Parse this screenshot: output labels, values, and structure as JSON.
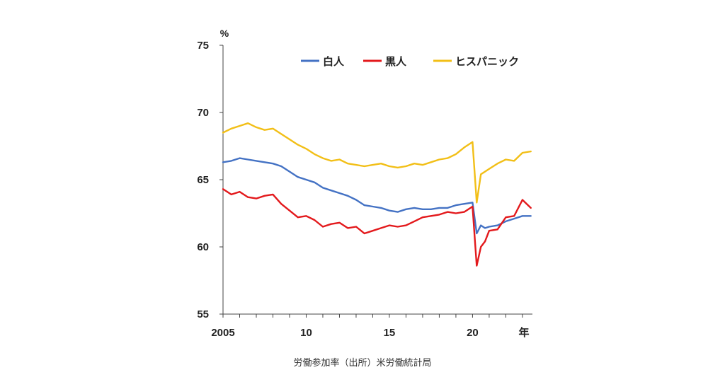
{
  "caption": "労働参加率（出所）米労働統計局",
  "chart_data": {
    "type": "line",
    "title": "",
    "ylabel": "%",
    "xlabel": "年",
    "ylim": [
      55,
      75
    ],
    "xlim": [
      2005,
      2023.6
    ],
    "yticks": [
      55,
      60,
      65,
      70,
      75
    ],
    "ytick_labels": [
      "55",
      "60",
      "65",
      "70",
      "75"
    ],
    "xticks": [
      2005,
      2010,
      2015,
      2020
    ],
    "xtick_labels": [
      "2005",
      "10",
      "15",
      "20"
    ],
    "grid": false,
    "legend_position": "top-right",
    "series": [
      {
        "name": "白人",
        "color": "#4472C4",
        "x": [
          2005.0,
          2005.5,
          2006.0,
          2006.5,
          2007.0,
          2007.5,
          2008.0,
          2008.5,
          2009.0,
          2009.5,
          2010.0,
          2010.5,
          2011.0,
          2011.5,
          2012.0,
          2012.5,
          2013.0,
          2013.5,
          2014.0,
          2014.5,
          2015.0,
          2015.5,
          2016.0,
          2016.5,
          2017.0,
          2017.5,
          2018.0,
          2018.5,
          2019.0,
          2019.5,
          2020.0,
          2020.25,
          2020.5,
          2020.75,
          2021.0,
          2021.5,
          2022.0,
          2022.5,
          2023.0,
          2023.5
        ],
        "y": [
          66.3,
          66.4,
          66.6,
          66.5,
          66.4,
          66.3,
          66.2,
          66.0,
          65.6,
          65.2,
          65.0,
          64.8,
          64.4,
          64.2,
          64.0,
          63.8,
          63.5,
          63.1,
          63.0,
          62.9,
          62.7,
          62.6,
          62.8,
          62.9,
          62.8,
          62.8,
          62.9,
          62.9,
          63.1,
          63.2,
          63.3,
          61.0,
          61.6,
          61.4,
          61.5,
          61.6,
          61.9,
          62.1,
          62.3,
          62.3
        ]
      },
      {
        "name": "黒人",
        "color": "#E3191C",
        "x": [
          2005.0,
          2005.5,
          2006.0,
          2006.5,
          2007.0,
          2007.5,
          2008.0,
          2008.5,
          2009.0,
          2009.5,
          2010.0,
          2010.5,
          2011.0,
          2011.5,
          2012.0,
          2012.5,
          2013.0,
          2013.5,
          2014.0,
          2014.5,
          2015.0,
          2015.5,
          2016.0,
          2016.5,
          2017.0,
          2017.5,
          2018.0,
          2018.5,
          2019.0,
          2019.5,
          2020.0,
          2020.25,
          2020.5,
          2020.75,
          2021.0,
          2021.5,
          2022.0,
          2022.5,
          2023.0,
          2023.5
        ],
        "y": [
          64.3,
          63.9,
          64.1,
          63.7,
          63.6,
          63.8,
          63.9,
          63.2,
          62.7,
          62.2,
          62.3,
          62.0,
          61.5,
          61.7,
          61.8,
          61.4,
          61.5,
          61.0,
          61.2,
          61.4,
          61.6,
          61.5,
          61.6,
          61.9,
          62.2,
          62.3,
          62.4,
          62.6,
          62.5,
          62.6,
          63.0,
          58.6,
          60.0,
          60.4,
          61.2,
          61.3,
          62.2,
          62.3,
          63.5,
          62.9
        ]
      },
      {
        "name": "ヒスパニック",
        "color": "#F2BF17",
        "x": [
          2005.0,
          2005.5,
          2006.0,
          2006.5,
          2007.0,
          2007.5,
          2008.0,
          2008.5,
          2009.0,
          2009.5,
          2010.0,
          2010.5,
          2011.0,
          2011.5,
          2012.0,
          2012.5,
          2013.0,
          2013.5,
          2014.0,
          2014.5,
          2015.0,
          2015.5,
          2016.0,
          2016.5,
          2017.0,
          2017.5,
          2018.0,
          2018.5,
          2019.0,
          2019.5,
          2020.0,
          2020.25,
          2020.5,
          2020.75,
          2021.0,
          2021.5,
          2022.0,
          2022.5,
          2023.0,
          2023.5
        ],
        "y": [
          68.5,
          68.8,
          69.0,
          69.2,
          68.9,
          68.7,
          68.8,
          68.4,
          68.0,
          67.6,
          67.3,
          66.9,
          66.6,
          66.4,
          66.5,
          66.2,
          66.1,
          66.0,
          66.1,
          66.2,
          66.0,
          65.9,
          66.0,
          66.2,
          66.1,
          66.3,
          66.5,
          66.6,
          66.9,
          67.4,
          67.8,
          63.3,
          65.4,
          65.6,
          65.8,
          66.2,
          66.5,
          66.4,
          67.0,
          67.1
        ]
      }
    ]
  }
}
